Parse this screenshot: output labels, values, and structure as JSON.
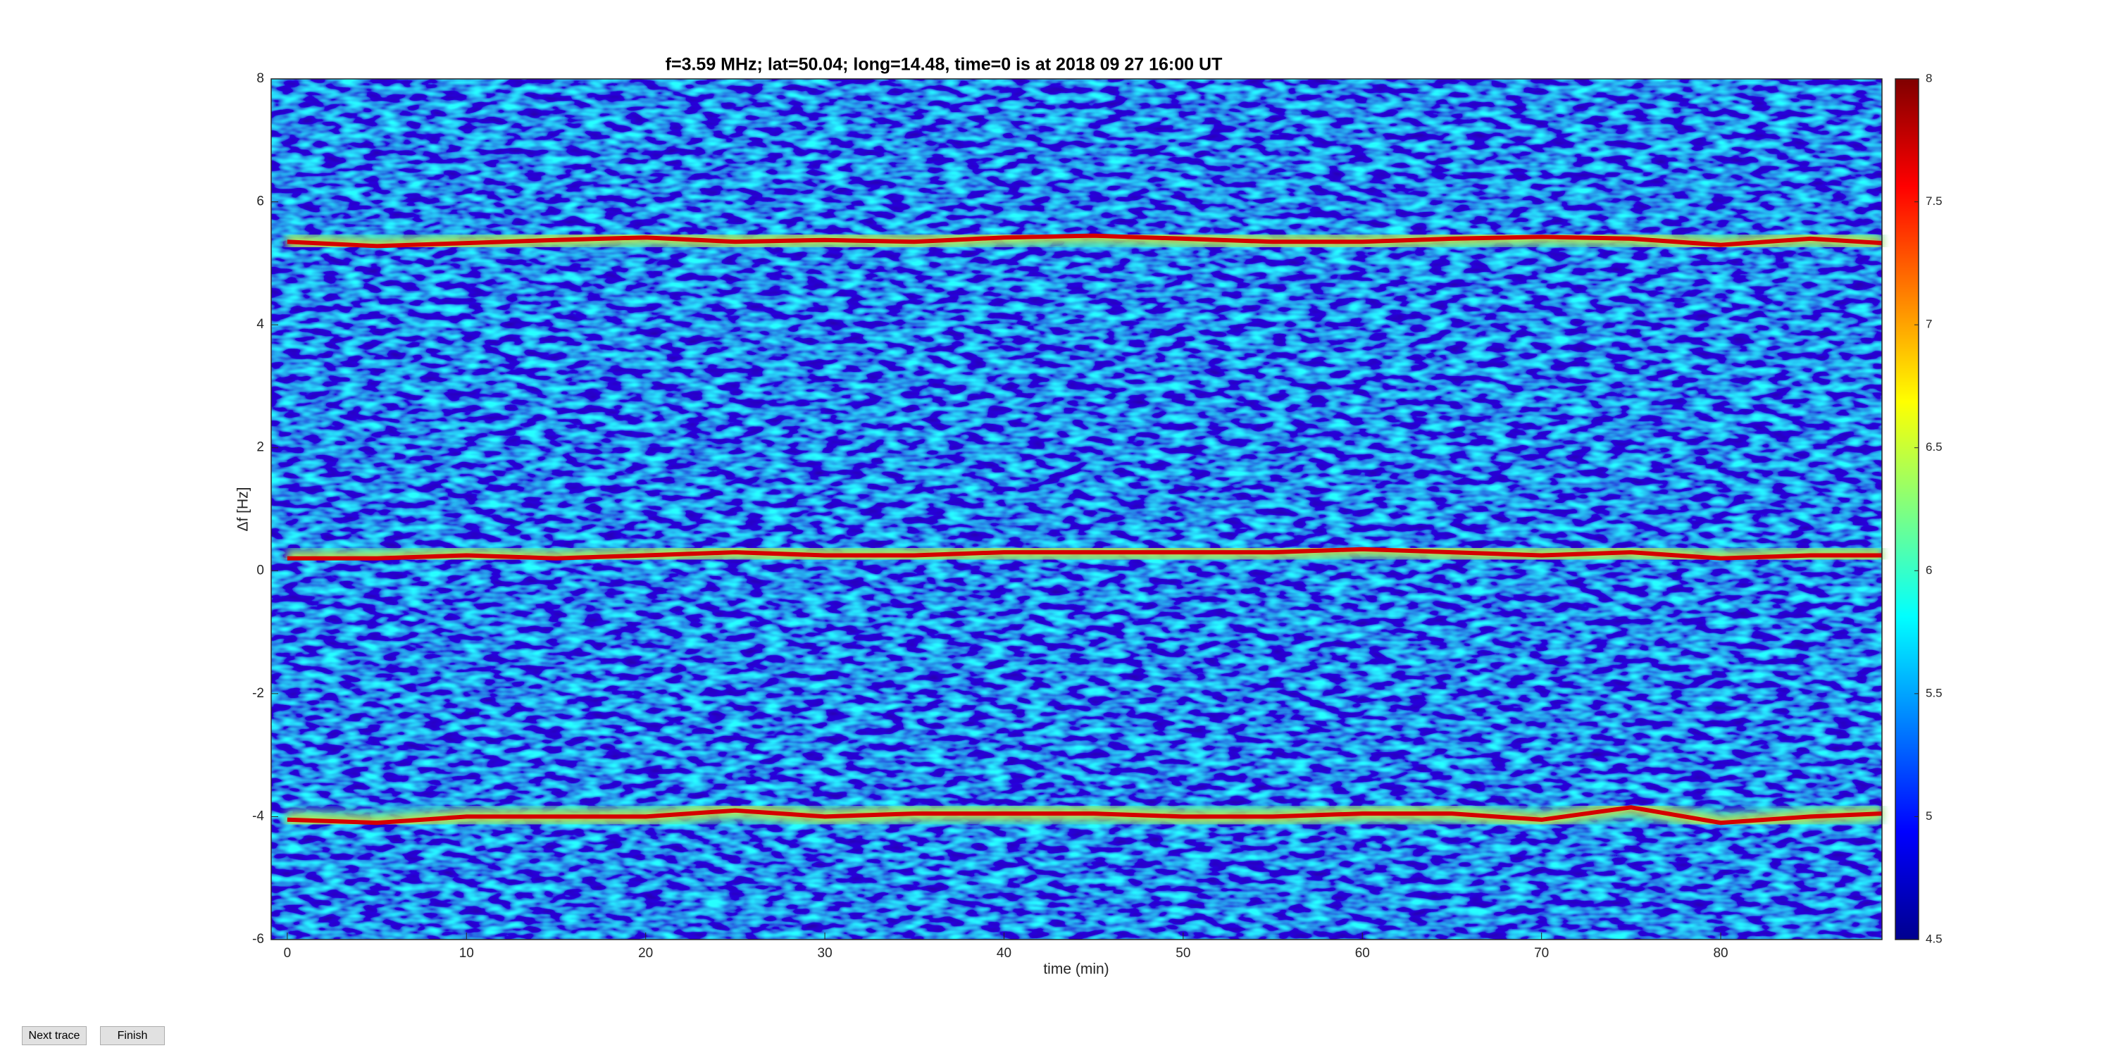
{
  "chart_data": {
    "type": "spectrogram",
    "title": "f=3.59 MHz;  lat=50.04; long=14.48, time=0 is at 2018 09 27 16:00 UT",
    "xlabel": "time (min)",
    "ylabel": "Δf [Hz]",
    "x": [
      0,
      5,
      10,
      15,
      20,
      25,
      30,
      35,
      40,
      45,
      50,
      55,
      60,
      65,
      70,
      75,
      80,
      85,
      89
    ],
    "series": [
      {
        "color": "#d40000",
        "values": [
          5.35,
          5.28,
          5.33,
          5.38,
          5.42,
          5.35,
          5.38,
          5.35,
          5.42,
          5.45,
          5.4,
          5.35,
          5.35,
          5.4,
          5.43,
          5.4,
          5.3,
          5.4,
          5.33
        ]
      },
      {
        "color": "#d40000",
        "values": [
          0.2,
          0.2,
          0.25,
          0.2,
          0.25,
          0.3,
          0.25,
          0.25,
          0.3,
          0.3,
          0.3,
          0.3,
          0.35,
          0.3,
          0.25,
          0.3,
          0.2,
          0.25,
          0.25
        ]
      },
      {
        "color": "#d40000",
        "values": [
          -4.05,
          -4.1,
          -4.0,
          -4.0,
          -4.0,
          -3.9,
          -4.0,
          -3.95,
          -3.95,
          -3.95,
          -4.0,
          -4.0,
          -3.95,
          -3.95,
          -4.05,
          -3.85,
          -4.1,
          -4.0,
          -3.95
        ]
      }
    ],
    "xlim": [
      -0.9,
      89
    ],
    "xticks": [
      0,
      10,
      20,
      30,
      40,
      50,
      60,
      70,
      80
    ],
    "ylim": [
      -6,
      8
    ],
    "yticks": [
      -6,
      -4,
      -2,
      0,
      2,
      4,
      6,
      8
    ],
    "colormap": "jet",
    "clim": [
      4.5,
      8
    ],
    "cticks": [
      4.5,
      5,
      5.5,
      6,
      6.5,
      7,
      7.5,
      8
    ]
  },
  "buttons": [
    "Next trace",
    "Finish"
  ]
}
